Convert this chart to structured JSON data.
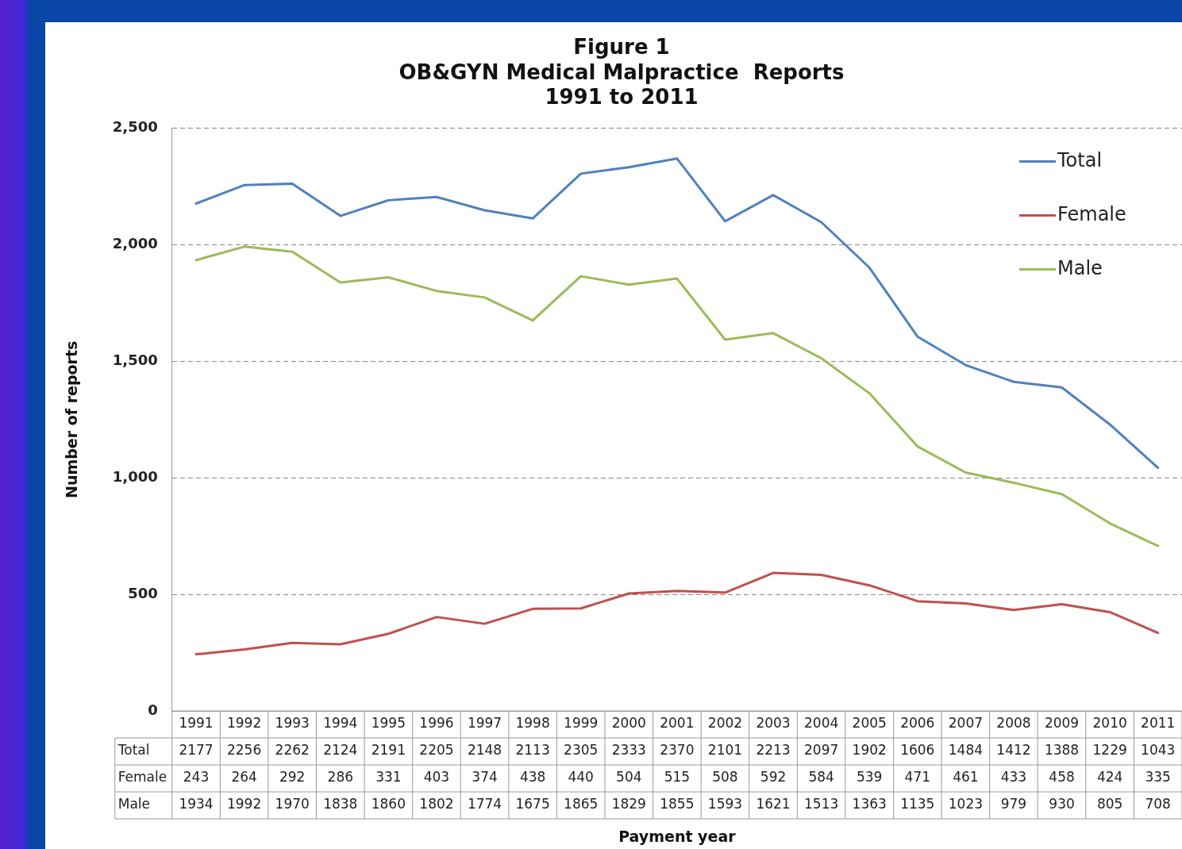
{
  "chart_data": {
    "type": "line",
    "title": "Figure 1\nOB&GYN Medical Malpractice  Reports\n1991 to 2011",
    "annotations": [
      "Payment year"
    ],
    "ylabel": "Number of reports",
    "categories": [
      "1991",
      "1992",
      "1993",
      "1994",
      "1995",
      "1996",
      "1997",
      "1998",
      "1999",
      "2000",
      "2001",
      "2002",
      "2003",
      "2004",
      "2005",
      "2006",
      "2007",
      "2008",
      "2009",
      "2010",
      "2011"
    ],
    "series": [
      {
        "name": "Total",
        "color": "#4f81bd",
        "values": [
          2177,
          2256,
          2262,
          2124,
          2191,
          2205,
          2148,
          2113,
          2305,
          2333,
          2370,
          2101,
          2213,
          2097,
          1902,
          1606,
          1484,
          1412,
          1388,
          1229,
          1043
        ]
      },
      {
        "name": "Female",
        "color": "#c0504d",
        "values": [
          243,
          264,
          292,
          286,
          331,
          403,
          374,
          438,
          440,
          504,
          515,
          508,
          592,
          584,
          539,
          471,
          461,
          433,
          458,
          424,
          335
        ]
      },
      {
        "name": "Male",
        "color": "#9bbb59",
        "values": [
          1934,
          1992,
          1970,
          1838,
          1860,
          1802,
          1774,
          1675,
          1865,
          1829,
          1855,
          1593,
          1621,
          1513,
          1363,
          1135,
          1023,
          979,
          930,
          805,
          708
        ]
      }
    ],
    "ylim": [
      0,
      2500
    ],
    "yticks": [
      {
        "value": 0,
        "label": "0"
      },
      {
        "value": 500,
        "label": "500"
      },
      {
        "value": 1000,
        "label": "1,000"
      },
      {
        "value": 1500,
        "label": "1,500"
      },
      {
        "value": 2000,
        "label": "2,000"
      },
      {
        "value": 2500,
        "label": "2,500"
      }
    ],
    "grid": "y",
    "legend": "top right",
    "marker": "none",
    "line_style": "solid",
    "data_labels": true
  }
}
